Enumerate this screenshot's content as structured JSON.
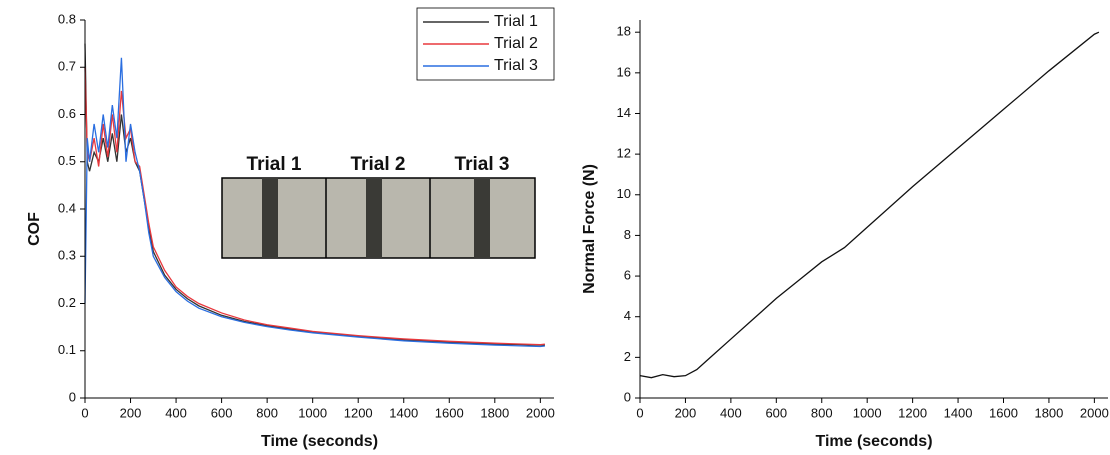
{
  "chart_data": [
    {
      "type": "line",
      "x_label": "Time (seconds)",
      "y_label": "COF",
      "x": [
        0,
        10,
        20,
        40,
        60,
        80,
        100,
        120,
        140,
        160,
        180,
        200,
        220,
        240,
        260,
        280,
        300,
        350,
        400,
        450,
        500,
        600,
        700,
        800,
        900,
        1000,
        1200,
        1400,
        1600,
        1800,
        2000,
        2020
      ],
      "series": [
        {
          "name": "Trial 1",
          "color": "#333333",
          "values": [
            0.75,
            0.5,
            0.48,
            0.52,
            0.5,
            0.55,
            0.5,
            0.56,
            0.5,
            0.6,
            0.52,
            0.55,
            0.5,
            0.48,
            0.42,
            0.36,
            0.31,
            0.26,
            0.23,
            0.21,
            0.195,
            0.175,
            0.162,
            0.153,
            0.146,
            0.14,
            0.13,
            0.123,
            0.118,
            0.114,
            0.112,
            0.112
          ]
        },
        {
          "name": "Trial 2",
          "color": "#e8383d",
          "values": [
            0.7,
            0.52,
            0.5,
            0.55,
            0.49,
            0.58,
            0.51,
            0.6,
            0.52,
            0.65,
            0.55,
            0.57,
            0.5,
            0.49,
            0.43,
            0.37,
            0.32,
            0.27,
            0.235,
            0.215,
            0.2,
            0.18,
            0.165,
            0.155,
            0.148,
            0.141,
            0.132,
            0.125,
            0.12,
            0.116,
            0.113,
            0.114
          ]
        },
        {
          "name": "Trial 3",
          "color": "#2a6ee0",
          "values": [
            0.2,
            0.55,
            0.5,
            0.58,
            0.52,
            0.6,
            0.53,
            0.62,
            0.55,
            0.72,
            0.5,
            0.58,
            0.52,
            0.48,
            0.42,
            0.35,
            0.3,
            0.255,
            0.225,
            0.205,
            0.19,
            0.172,
            0.16,
            0.151,
            0.144,
            0.138,
            0.129,
            0.121,
            0.116,
            0.112,
            0.109,
            0.11
          ]
        }
      ],
      "xlim": [
        0,
        2060
      ],
      "ylim": [
        0,
        0.8
      ],
      "xticks": [
        0,
        200,
        400,
        600,
        800,
        1000,
        1200,
        1400,
        1600,
        1800,
        2000
      ],
      "yticks": [
        0,
        0.1,
        0.2,
        0.3,
        0.4,
        0.5,
        0.6,
        0.7,
        0.8
      ],
      "legend": "top-right",
      "inset": {
        "labels": [
          "Trial 1",
          "Trial 2",
          "Trial 3"
        ]
      }
    },
    {
      "type": "line",
      "x_label": "Time (seconds)",
      "y_label": "Normal Force (N)",
      "x": [
        0,
        50,
        100,
        150,
        200,
        250,
        300,
        400,
        500,
        600,
        700,
        800,
        900,
        1000,
        1200,
        1400,
        1600,
        1800,
        2000,
        2020
      ],
      "values": [
        1.1,
        1.0,
        1.15,
        1.05,
        1.1,
        1.4,
        1.9,
        2.9,
        3.9,
        4.9,
        5.8,
        6.7,
        7.4,
        8.4,
        10.4,
        12.3,
        14.2,
        16.1,
        17.9,
        18.0
      ],
      "color": "#111111",
      "xlim": [
        0,
        2060
      ],
      "ylim": [
        0,
        18.6
      ],
      "xticks": [
        0,
        200,
        400,
        600,
        800,
        1000,
        1200,
        1400,
        1600,
        1800,
        2000
      ],
      "yticks": [
        0,
        2,
        4,
        6,
        8,
        10,
        12,
        14,
        16,
        18
      ]
    }
  ]
}
